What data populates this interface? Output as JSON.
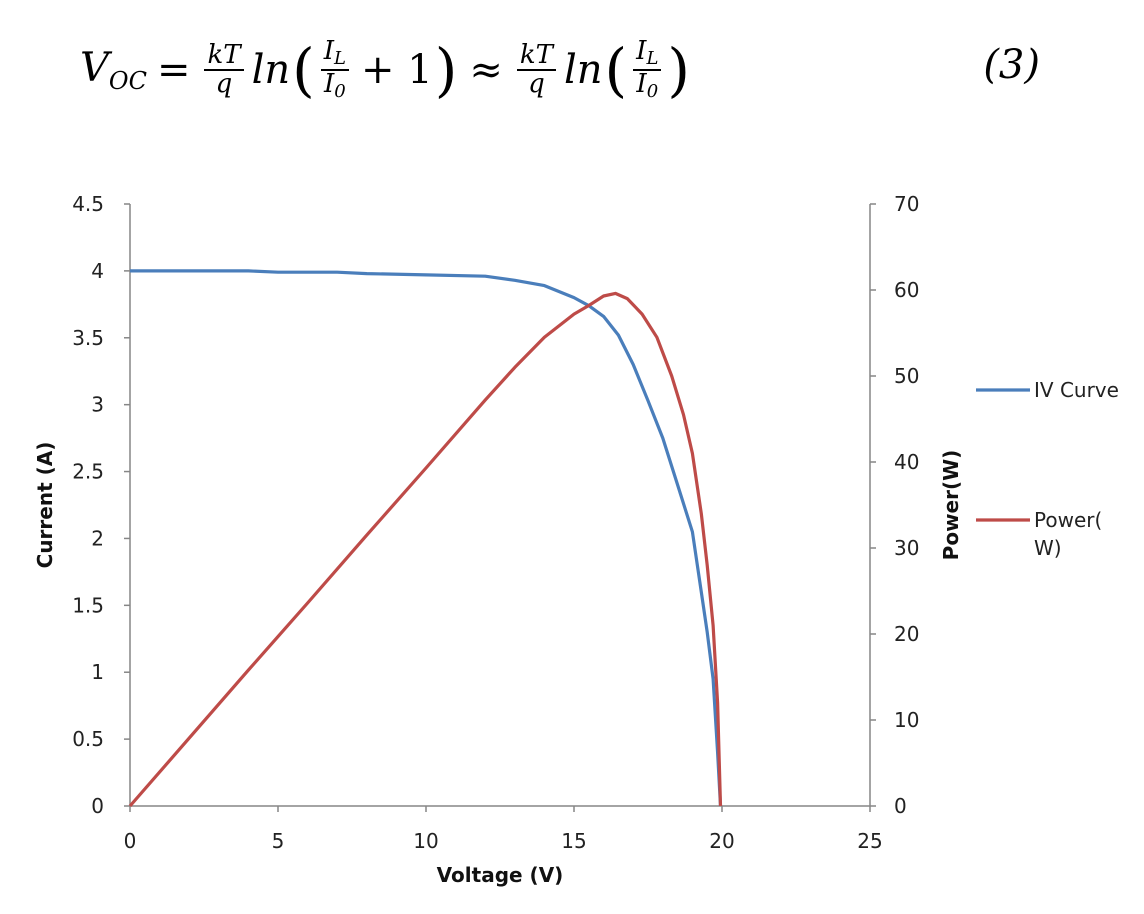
{
  "equation": {
    "lhs": "V",
    "lhs_sub": "OC",
    "equals": "=",
    "frac1_num": "kT",
    "frac1_den": "q",
    "fn1": "ln",
    "inner_num1": "I",
    "inner_num1_sub": "L",
    "inner_den1": "I",
    "inner_den1_sub": "0",
    "plus_one": "+ 1",
    "approx": "≈",
    "frac2_num": "kT",
    "frac2_den": "q",
    "fn2": "ln",
    "inner_num2": "I",
    "inner_num2_sub": "L",
    "inner_den2": "I",
    "inner_den2_sub": "0",
    "number": "(3)"
  },
  "chart_data": {
    "type": "line",
    "title": "",
    "xlabel": "Voltage (V)",
    "ylabel": "Current (A)",
    "y2label": "Power(W)",
    "xlim": [
      0,
      25
    ],
    "ylim": [
      0,
      4.5
    ],
    "y2lim": [
      0,
      70
    ],
    "x_ticks": [
      0,
      5,
      10,
      15,
      20,
      25
    ],
    "y_ticks": [
      "0",
      "0.5",
      "1",
      "1.5",
      "2",
      "2.5",
      "3",
      "3.5",
      "4",
      "4.5"
    ],
    "y2_ticks": [
      0,
      10,
      20,
      30,
      40,
      50,
      60,
      70
    ],
    "grid": false,
    "legend_position": "right",
    "series": [
      {
        "name": "IV Curve",
        "axis": "left",
        "color": "#4a7ebb",
        "points": [
          [
            0,
            4.0
          ],
          [
            2,
            4.0
          ],
          [
            4,
            4.0
          ],
          [
            5,
            3.99
          ],
          [
            7,
            3.99
          ],
          [
            8,
            3.98
          ],
          [
            10,
            3.97
          ],
          [
            12,
            3.96
          ],
          [
            13,
            3.93
          ],
          [
            14,
            3.89
          ],
          [
            15,
            3.8
          ],
          [
            15.5,
            3.74
          ],
          [
            16,
            3.66
          ],
          [
            16.5,
            3.52
          ],
          [
            17,
            3.3
          ],
          [
            17.5,
            3.03
          ],
          [
            18,
            2.75
          ],
          [
            18.5,
            2.4
          ],
          [
            19,
            2.05
          ],
          [
            19.3,
            1.6
          ],
          [
            19.5,
            1.3
          ],
          [
            19.7,
            0.95
          ],
          [
            19.85,
            0.4
          ],
          [
            19.95,
            0.0
          ]
        ]
      },
      {
        "name": "Power(W)",
        "axis": "right",
        "color": "#be4b48",
        "points": [
          [
            0,
            0
          ],
          [
            2,
            7.9
          ],
          [
            4,
            15.8
          ],
          [
            6,
            23.6
          ],
          [
            8,
            31.5
          ],
          [
            10,
            39.3
          ],
          [
            12,
            47.2
          ],
          [
            13,
            51.0
          ],
          [
            14,
            54.5
          ],
          [
            15,
            57.2
          ],
          [
            15.5,
            58.2
          ],
          [
            16,
            59.3
          ],
          [
            16.4,
            59.6
          ],
          [
            16.8,
            59.0
          ],
          [
            17.3,
            57.2
          ],
          [
            17.8,
            54.5
          ],
          [
            18.3,
            50.0
          ],
          [
            18.7,
            45.5
          ],
          [
            19.0,
            41.0
          ],
          [
            19.3,
            34.0
          ],
          [
            19.5,
            28.0
          ],
          [
            19.7,
            21.0
          ],
          [
            19.85,
            12.0
          ],
          [
            19.95,
            0.0
          ]
        ]
      }
    ]
  }
}
